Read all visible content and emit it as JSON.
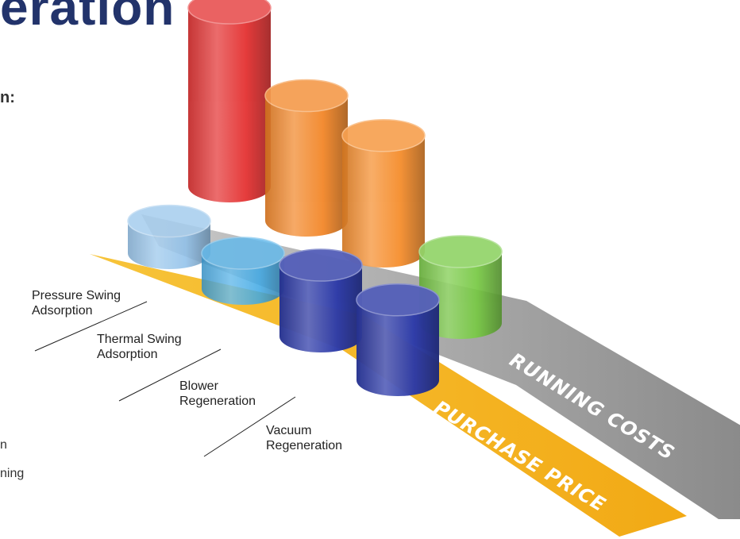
{
  "page": {
    "heading": "eration",
    "subheading": "n:",
    "body_fragment_1": "n",
    "body_fragment_2": "ning"
  },
  "colors": {
    "heading": "#22336b",
    "running_band": "#9e9e9e",
    "purchase_band": "#f5b21b",
    "pressure_swing_running": "#e32b2b",
    "thermal_swing_running": "#f28322",
    "blower_running": "#f58a26",
    "vacuum_running": "#77c943",
    "pressure_swing_purchase": "#8ec0ea",
    "thermal_swing_purchase": "#3ea8e5",
    "blower_purchase": "#2c3aa8",
    "vacuum_purchase": "#2c3aa8"
  },
  "chart_data": {
    "type": "bar",
    "title": "",
    "categories": [
      "Pressure Swing Adsorption",
      "Thermal Swing Adsorption",
      "Blower Regeneration",
      "Vacuum Regeneration"
    ],
    "category_labels": [
      {
        "line1": "Pressure Swing",
        "line2": "Adsorption"
      },
      {
        "line1": "Thermal Swing",
        "line2": "Adsorption"
      },
      {
        "line1": "Blower",
        "line2": "Regeneration"
      },
      {
        "line1": "Vacuum",
        "line2": "Regeneration"
      }
    ],
    "series": [
      {
        "name": "RUNNING COSTS",
        "values": [
          10,
          7,
          6.5,
          4
        ]
      },
      {
        "name": "PURCHASE PRICE",
        "values": [
          1.8,
          2,
          4,
          4.5
        ]
      }
    ],
    "axes": "none",
    "grid": false,
    "legend": "band labels along the base"
  }
}
